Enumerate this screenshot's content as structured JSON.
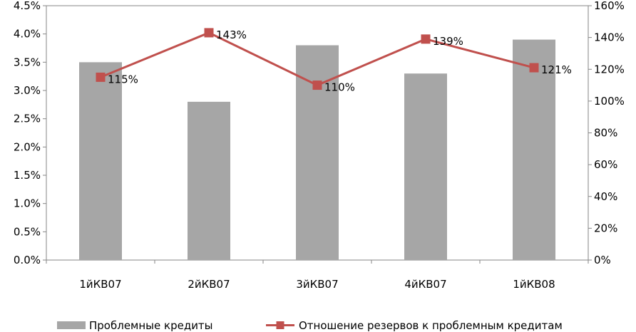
{
  "chart_data": {
    "type": "bar+line",
    "categories": [
      "1йКВ07",
      "2йКВ07",
      "3йКВ07",
      "4йКВ07",
      "1йКВ08"
    ],
    "series": [
      {
        "name": "Проблемные кредиты",
        "type": "bar",
        "axis": "left",
        "color": "#a6a6a6",
        "values": [
          3.5,
          2.8,
          3.8,
          3.3,
          3.9
        ]
      },
      {
        "name": "Отношение резервов к проблемным кредитам",
        "type": "line",
        "axis": "right",
        "color": "#c0504d",
        "marker": "square",
        "values": [
          115,
          143,
          110,
          139,
          121
        ],
        "data_labels": [
          "115%",
          "143%",
          "110%",
          "139%",
          "121%"
        ]
      }
    ],
    "y_left": {
      "ylim": [
        0,
        4.5
      ],
      "ticks": [
        0,
        0.5,
        1.0,
        1.5,
        2.0,
        2.5,
        3.0,
        3.5,
        4.0,
        4.5
      ],
      "tick_labels": [
        "0.0%",
        "0.5%",
        "1.0%",
        "1.5%",
        "2.0%",
        "2.5%",
        "3.0%",
        "3.5%",
        "4.0%",
        "4.5%"
      ]
    },
    "y_right": {
      "ylim": [
        0,
        160
      ],
      "ticks": [
        0,
        20,
        40,
        60,
        80,
        100,
        120,
        140,
        160
      ],
      "tick_labels": [
        "0%",
        "20%",
        "40%",
        "60%",
        "80%",
        "100%",
        "120%",
        "140%",
        "160%"
      ]
    },
    "grid": false,
    "legend": "bottom"
  }
}
